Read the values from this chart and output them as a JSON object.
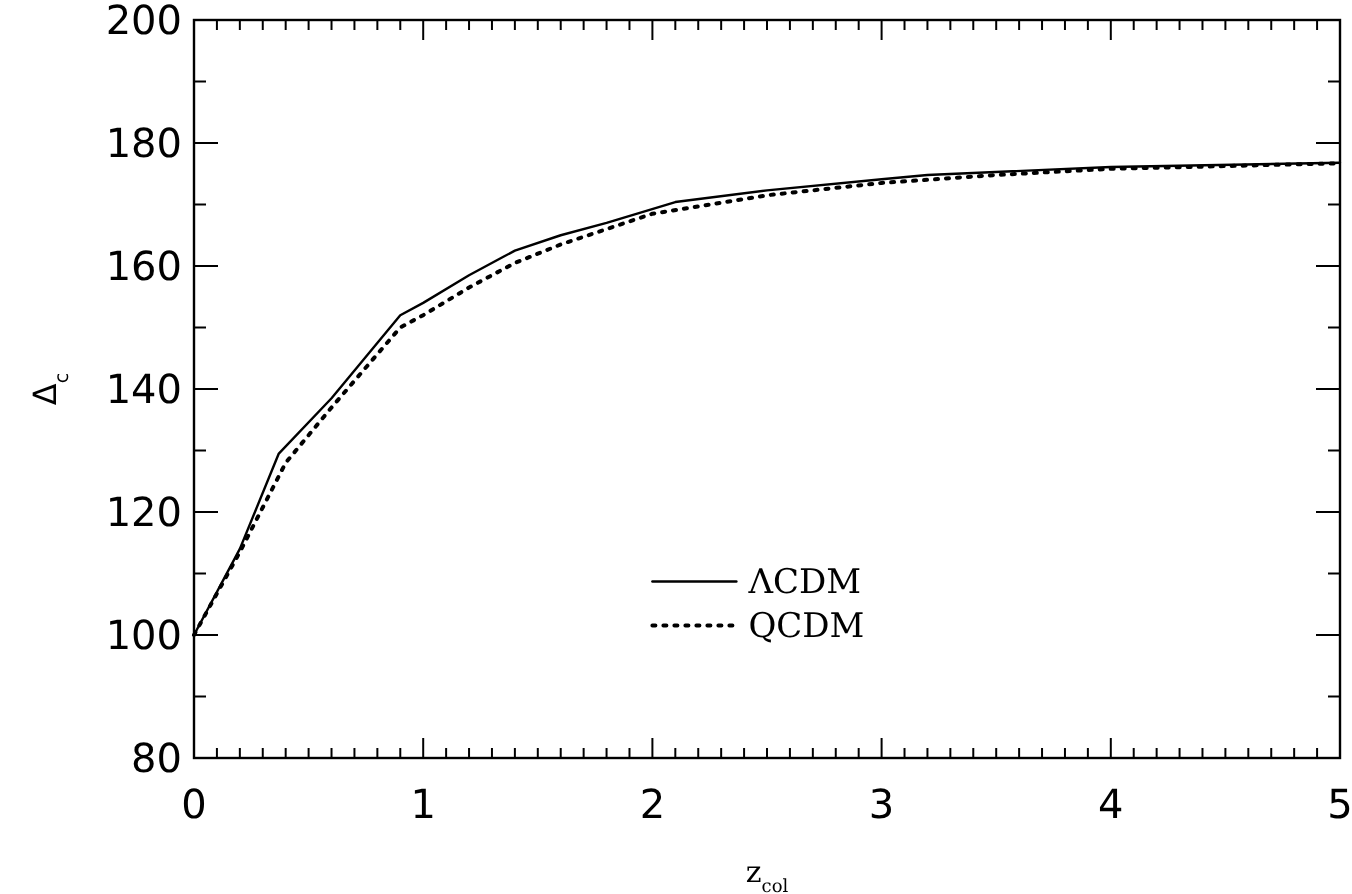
{
  "chart_data": {
    "type": "line",
    "xlabel": "z$_{col}$",
    "ylabel": "Δ$_{c}$",
    "xlim": [
      0,
      5
    ],
    "ylim": [
      80,
      200
    ],
    "xticks": [
      0,
      {
        "value": 0.1,
        "label": null
      },
      {
        "value": 0.2,
        "label": null
      },
      {
        "value": 0.3,
        "label": null
      },
      {
        "value": 0.4,
        "label": null
      },
      {
        "value": 0.5,
        "label": null
      },
      {
        "value": 0.6,
        "label": null
      },
      {
        "value": 0.7,
        "label": null
      },
      {
        "value": 0.8,
        "label": null
      },
      {
        "value": 0.9,
        "label": null
      },
      1,
      {
        "value": 1.1,
        "label": null
      },
      {
        "value": 1.2,
        "label": null
      },
      {
        "value": 1.3,
        "label": null
      },
      {
        "value": 1.4,
        "label": null
      },
      {
        "value": 1.5,
        "label": null
      },
      {
        "value": 1.6,
        "label": null
      },
      {
        "value": 1.7,
        "label": null
      },
      {
        "value": 1.8,
        "label": null
      },
      {
        "value": 1.9,
        "label": null
      },
      2,
      {
        "value": 2.1,
        "label": null
      },
      {
        "value": 2.2,
        "label": null
      },
      {
        "value": 2.3,
        "label": null
      },
      {
        "value": 2.4,
        "label": null
      },
      {
        "value": 2.5,
        "label": null
      },
      {
        "value": 2.6,
        "label": null
      },
      {
        "value": 2.7,
        "label": null
      },
      {
        "value": 2.8,
        "label": null
      },
      {
        "value": 2.9,
        "label": null
      },
      3,
      {
        "value": 3.1,
        "label": null
      },
      {
        "value": 3.2,
        "label": null
      },
      {
        "value": 3.3,
        "label": null
      },
      {
        "value": 3.4,
        "label": null
      },
      {
        "value": 3.5,
        "label": null
      },
      {
        "value": 3.6,
        "label": null
      },
      {
        "value": 3.7,
        "label": null
      },
      {
        "value": 3.8,
        "label": null
      },
      {
        "value": 3.9,
        "label": null
      },
      4,
      {
        "value": 4.1,
        "label": null
      },
      {
        "value": 4.2,
        "label": null
      },
      {
        "value": 4.3,
        "label": null
      },
      {
        "value": 4.4,
        "label": null
      },
      {
        "value": 4.5,
        "label": null
      },
      {
        "value": 4.6,
        "label": null
      },
      {
        "value": 4.7,
        "label": null
      },
      {
        "value": 4.8,
        "label": null
      },
      {
        "value": 4.9,
        "label": null
      },
      5
    ],
    "yticks": [
      80,
      {
        "value": 90,
        "label": null
      },
      100,
      {
        "value": 110,
        "label": null
      },
      120,
      {
        "value": 130,
        "label": null
      },
      140,
      {
        "value": 150,
        "label": null
      },
      160,
      {
        "value": 170,
        "label": null
      },
      180,
      {
        "value": 190,
        "label": null
      },
      200
    ],
    "legend": "bottom right",
    "grid": false,
    "series": [
      {
        "name": "ΛCDM",
        "color": "#000000",
        "line_style": "solid",
        "x": [
          0,
          0.2,
          0.37,
          0.6,
          0.9,
          1.0,
          1.2,
          1.4,
          1.6,
          1.8,
          2.1,
          2.5,
          3.0,
          3.2,
          4.0,
          5.0
        ],
        "values": [
          100,
          114,
          129.5,
          138.5,
          152,
          154,
          158.5,
          162.5,
          165,
          167,
          170.4,
          172.3,
          174.1,
          174.8,
          176.1,
          176.8
        ]
      },
      {
        "name": "QCDM",
        "color": "#000000",
        "line_style": "dotted",
        "x": [
          0,
          0.2,
          0.4,
          0.6,
          0.9,
          1.0,
          1.2,
          1.4,
          1.6,
          1.8,
          2.0,
          2.5,
          3.0,
          3.5,
          4.0,
          5.0
        ],
        "values": [
          100,
          113.5,
          128,
          137,
          150,
          152,
          156.5,
          160.5,
          163.5,
          166,
          168.5,
          171.5,
          173.5,
          174.8,
          175.8,
          176.7
        ]
      }
    ]
  }
}
